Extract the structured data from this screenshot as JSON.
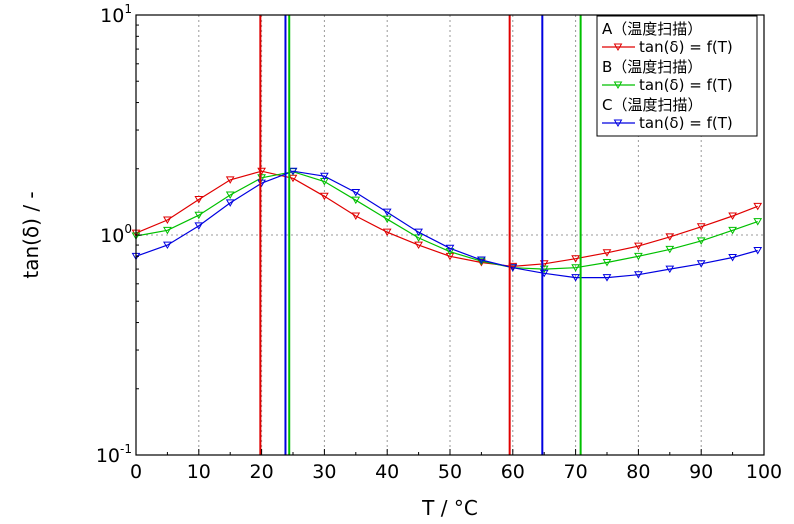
{
  "chart_data": {
    "type": "line",
    "xlabel": "T / °C",
    "ylabel": "tan(δ) / -",
    "xlim": [
      0,
      100
    ],
    "ylim": [
      0.1,
      10
    ],
    "yscale": "log",
    "grid": true,
    "legend_position": "top-right",
    "x_ticks": [
      "0",
      "10",
      "20",
      "30",
      "40",
      "50",
      "60",
      "70",
      "80",
      "90",
      "100"
    ],
    "y_ticks": [
      {
        "base": "10",
        "exp": "-1",
        "value": 0.1
      },
      {
        "base": "10",
        "exp": "0",
        "value": 1
      },
      {
        "base": "10",
        "exp": "1",
        "value": 10
      }
    ],
    "legend": [
      {
        "group": "A（温度扫描）",
        "label": "tan(δ) = f(T)",
        "color": "#e00000"
      },
      {
        "group": "B（温度扫描）",
        "label": "tan(δ) = f(T)",
        "color": "#00c000"
      },
      {
        "group": "C（温度扫描）",
        "label": "tan(δ) = f(T)",
        "color": "#0000e0"
      }
    ],
    "series": [
      {
        "name": "A",
        "color": "#e00000",
        "x": [
          0,
          5,
          10,
          15,
          20,
          25,
          30,
          35,
          40,
          45,
          50,
          55,
          60,
          65,
          70,
          75,
          80,
          85,
          90,
          95,
          99
        ],
        "y": [
          1.02,
          1.17,
          1.45,
          1.78,
          1.95,
          1.81,
          1.5,
          1.22,
          1.03,
          0.9,
          0.8,
          0.75,
          0.72,
          0.74,
          0.78,
          0.83,
          0.89,
          0.98,
          1.09,
          1.22,
          1.35
        ]
      },
      {
        "name": "B",
        "color": "#00c000",
        "x": [
          0,
          5,
          10,
          15,
          20,
          25,
          30,
          35,
          40,
          45,
          50,
          55,
          60,
          65,
          70,
          75,
          80,
          85,
          90,
          95,
          99
        ],
        "y": [
          0.99,
          1.05,
          1.23,
          1.52,
          1.82,
          1.94,
          1.75,
          1.44,
          1.18,
          0.97,
          0.84,
          0.76,
          0.71,
          0.7,
          0.71,
          0.75,
          0.8,
          0.86,
          0.94,
          1.05,
          1.15
        ]
      },
      {
        "name": "C",
        "color": "#0000e0",
        "x": [
          0,
          5,
          10,
          15,
          20,
          25,
          30,
          35,
          40,
          45,
          50,
          55,
          60,
          65,
          70,
          75,
          80,
          85,
          90,
          95,
          99
        ],
        "y": [
          0.8,
          0.9,
          1.1,
          1.4,
          1.72,
          1.95,
          1.85,
          1.56,
          1.27,
          1.03,
          0.87,
          0.77,
          0.71,
          0.67,
          0.64,
          0.64,
          0.66,
          0.7,
          0.74,
          0.79,
          0.85
        ]
      }
    ],
    "vertical_markers": [
      {
        "x": 19.8,
        "color": "#e00000"
      },
      {
        "x": 23.8,
        "color": "#0000e0"
      },
      {
        "x": 24.4,
        "color": "#00c000"
      },
      {
        "x": 59.5,
        "color": "#e00000"
      },
      {
        "x": 64.7,
        "color": "#0000e0"
      },
      {
        "x": 70.8,
        "color": "#00c000"
      }
    ]
  }
}
